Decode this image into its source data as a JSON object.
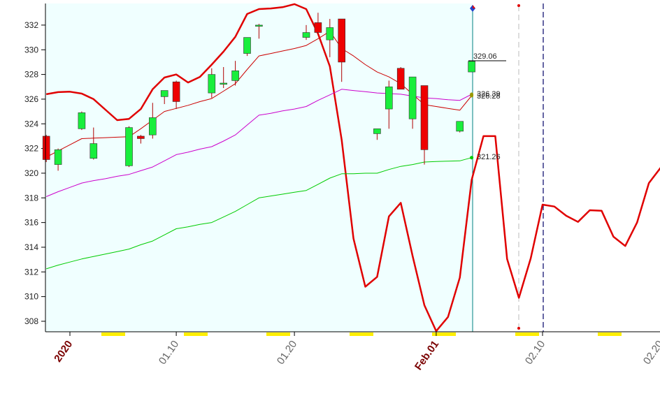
{
  "chart_data": {
    "type": "candlestick",
    "x": [
      "12.30",
      "12.31",
      "01.01",
      "01.02",
      "01.03",
      "01.04",
      "01.05",
      "01.06",
      "01.07",
      "01.08",
      "01.09",
      "01.10",
      "01.11",
      "01.12",
      "01.13",
      "01.14",
      "01.15",
      "01.16",
      "01.17",
      "01.18",
      "01.19",
      "01.20",
      "01.21",
      "01.22",
      "01.23",
      "01.24",
      "01.25",
      "01.26",
      "01.27",
      "01.28",
      "01.29",
      "01.30",
      "01.31",
      "02.01",
      "02.02",
      "02.03",
      "02.04",
      "02.05",
      "02.06",
      "02.07",
      "02.08",
      "02.09",
      "02.10",
      "02.11",
      "02.12",
      "02.13",
      "02.14",
      "02.15",
      "02.16",
      "02.17",
      "02.18",
      "02.19",
      "02.20"
    ],
    "open": [
      323.0,
      320.7,
      null,
      323.6,
      321.2,
      null,
      null,
      320.6,
      323.0,
      323.1,
      326.2,
      327.4,
      null,
      null,
      326.5,
      327.2,
      327.5,
      329.7,
      331.9,
      null,
      null,
      null,
      331.0,
      332.2,
      330.8,
      332.5,
      null,
      null,
      323.2,
      325.2,
      328.5,
      324.4,
      327.1,
      null,
      null,
      323.4,
      328.2,
      null,
      null,
      null,
      null,
      null,
      null,
      null,
      null,
      null,
      null,
      null,
      null,
      null,
      null,
      null,
      null
    ],
    "high": [
      323.1,
      322.0,
      null,
      325.0,
      323.7,
      null,
      null,
      323.8,
      323.1,
      325.7,
      326.7,
      327.5,
      null,
      null,
      328.5,
      328.6,
      329.1,
      331.0,
      332.1,
      null,
      null,
      null,
      332.0,
      333.0,
      332.5,
      332.5,
      null,
      null,
      323.6,
      327.5,
      328.6,
      327.8,
      327.1,
      null,
      null,
      324.2,
      329.1,
      null,
      null,
      null,
      null,
      null,
      null,
      null,
      null,
      null,
      null,
      null,
      null,
      null,
      null,
      null,
      null
    ],
    "low": [
      320.9,
      320.2,
      null,
      323.5,
      321.1,
      null,
      null,
      320.5,
      322.4,
      322.8,
      325.6,
      325.2,
      null,
      null,
      326.1,
      326.9,
      327.1,
      329.5,
      330.9,
      null,
      null,
      null,
      330.8,
      331.4,
      329.4,
      327.4,
      null,
      null,
      322.7,
      323.6,
      326.8,
      323.6,
      320.7,
      null,
      null,
      323.3,
      328.2,
      null,
      null,
      null,
      null,
      null,
      null,
      null,
      null,
      null,
      null,
      null,
      null,
      null,
      null,
      null,
      null
    ],
    "close": [
      321.1,
      321.9,
      null,
      324.9,
      322.4,
      null,
      null,
      323.7,
      322.8,
      324.5,
      326.7,
      325.8,
      null,
      null,
      328.0,
      327.3,
      328.3,
      331.0,
      332.0,
      null,
      null,
      null,
      331.4,
      331.4,
      331.8,
      329.0,
      null,
      null,
      323.6,
      327.0,
      326.8,
      327.8,
      321.9,
      null,
      null,
      324.2,
      329.06,
      null,
      null,
      null,
      null,
      null,
      null,
      null,
      null,
      null,
      null,
      null,
      null,
      null,
      null,
      null,
      null
    ],
    "up_color": "#19ee3c",
    "down_color": "#ee0000",
    "series": [
      {
        "color": "#e00000",
        "width": 2.5,
        "values": [
          326.4,
          326.57,
          326.6,
          326.45,
          326.0,
          325.15,
          324.3,
          324.4,
          325.2,
          326.8,
          327.75,
          328.0,
          327.35,
          327.8,
          328.8,
          329.85,
          331.05,
          332.9,
          333.3,
          333.35,
          333.45,
          333.7,
          333.3,
          331.3,
          328.65,
          322.7,
          314.7,
          310.8,
          311.6,
          316.5,
          317.6,
          313.3,
          309.3,
          307.2,
          308.35,
          311.55,
          319.45,
          323.0,
          323.0,
          313.05,
          309.9,
          313.1,
          317.45,
          317.3,
          316.55,
          316.05,
          317.0,
          316.95,
          314.85,
          314.1,
          316.0,
          319.2,
          320.45
        ]
      },
      {
        "color": "#cc0000",
        "width": 1,
        "values": [
          321.3,
          321.8,
          322.3,
          322.8,
          322.84,
          322.88,
          322.92,
          322.95,
          323.6,
          324.3,
          325.0,
          325.25,
          325.5,
          325.8,
          326.05,
          326.65,
          327.25,
          328.4,
          329.5,
          329.7,
          329.9,
          330.1,
          330.35,
          330.9,
          331.5,
          330.1,
          329.5,
          328.8,
          328.2,
          327.8,
          327.25,
          326.4,
          325.55,
          325.4,
          325.25,
          325.1,
          326.28,
          null,
          null,
          null,
          null,
          null,
          null,
          null,
          null,
          null,
          null,
          null,
          null,
          null,
          null,
          null,
          null
        ]
      },
      {
        "color": "#cc00cc",
        "width": 1,
        "values": [
          318.1,
          318.5,
          318.85,
          319.2,
          319.4,
          319.55,
          319.75,
          319.9,
          320.2,
          320.5,
          321.0,
          321.5,
          321.7,
          321.95,
          322.15,
          322.6,
          323.1,
          323.9,
          324.7,
          324.85,
          325.05,
          325.2,
          325.4,
          325.9,
          326.35,
          326.8,
          326.7,
          326.6,
          326.5,
          326.45,
          326.4,
          326.25,
          326.1,
          326.05,
          325.95,
          325.9,
          326.39,
          null,
          null,
          null,
          null,
          null,
          null,
          null,
          null,
          null,
          null,
          null,
          null,
          null,
          null,
          null,
          null
        ]
      },
      {
        "color": "#00cc00",
        "width": 1,
        "values": [
          312.25,
          312.55,
          312.8,
          313.05,
          313.25,
          313.45,
          313.65,
          313.85,
          314.2,
          314.5,
          315.0,
          315.5,
          315.65,
          315.85,
          316.0,
          316.45,
          316.9,
          317.45,
          318.0,
          318.15,
          318.3,
          318.45,
          318.6,
          319.1,
          319.6,
          319.95,
          319.95,
          320.0,
          320.0,
          320.3,
          320.55,
          320.7,
          320.9,
          320.95,
          320.97,
          321.0,
          321.26,
          null,
          null,
          null,
          null,
          null,
          null,
          null,
          null,
          null,
          null,
          null,
          null,
          null,
          null,
          null,
          null
        ]
      }
    ],
    "ylim": [
      307.15,
      333.75
    ],
    "yticks": [
      308,
      310,
      312,
      314,
      316,
      318,
      320,
      322,
      324,
      326,
      328,
      330,
      332
    ],
    "xticks": [
      {
        "value": "01.01",
        "label": "2020"
      },
      "01.10",
      "01.20",
      {
        "value": "02.01",
        "label": "Feb.01"
      },
      "02.10",
      "02.20"
    ],
    "annotations": [
      "329.06",
      "326.39",
      "326.28",
      "321.26"
    ]
  }
}
